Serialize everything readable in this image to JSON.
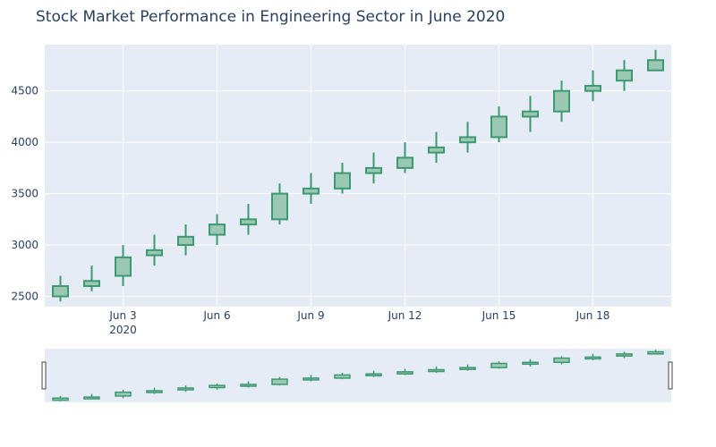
{
  "chart_data": {
    "type": "candlestick",
    "title": "Stock Market Performance in Engineering Sector in June 2020",
    "xlabel": "",
    "ylabel": "",
    "x": [
      "2020-06-01",
      "2020-06-02",
      "2020-06-03",
      "2020-06-04",
      "2020-06-05",
      "2020-06-06",
      "2020-06-07",
      "2020-06-08",
      "2020-06-09",
      "2020-06-10",
      "2020-06-11",
      "2020-06-12",
      "2020-06-13",
      "2020-06-14",
      "2020-06-15",
      "2020-06-16",
      "2020-06-17",
      "2020-06-18",
      "2020-06-19",
      "2020-06-20"
    ],
    "open": [
      2500,
      2600,
      2700,
      2900,
      3000,
      3100,
      3200,
      3250,
      3500,
      3550,
      3700,
      3750,
      3900,
      4000,
      4050,
      4250,
      4300,
      4500,
      4600,
      4700
    ],
    "close": [
      2600,
      2650,
      2880,
      2950,
      3080,
      3200,
      3250,
      3500,
      3550,
      3700,
      3750,
      3850,
      3950,
      4050,
      4250,
      4300,
      4500,
      4550,
      4700,
      4800
    ],
    "high": [
      2700,
      2800,
      3000,
      3100,
      3200,
      3300,
      3400,
      3600,
      3700,
      3800,
      3900,
      4000,
      4100,
      4200,
      4350,
      4450,
      4600,
      4700,
      4800,
      4900
    ],
    "low": [
      2450,
      2550,
      2600,
      2800,
      2900,
      3000,
      3100,
      3200,
      3400,
      3500,
      3600,
      3700,
      3800,
      3900,
      4000,
      4100,
      4200,
      4400,
      4500,
      4700
    ],
    "x_ticks": [
      "Jun 3",
      "Jun 6",
      "Jun 9",
      "Jun 12",
      "Jun 15",
      "Jun 18"
    ],
    "x_tick_dates": [
      "2020-06-03",
      "2020-06-06",
      "2020-06-09",
      "2020-06-12",
      "2020-06-15",
      "2020-06-18"
    ],
    "x_year_label": "2020",
    "y_ticks": [
      2500,
      3000,
      3500,
      4000,
      4500
    ],
    "ylim": [
      2400,
      4950
    ],
    "grid": true,
    "rangeslider": true,
    "colors": {
      "increasing_line": "#3D9970",
      "increasing_fill": "#9BC8B3",
      "plot_bg": "#E5ECF6",
      "grid": "#ffffff",
      "text": "#2a3f5f"
    }
  }
}
